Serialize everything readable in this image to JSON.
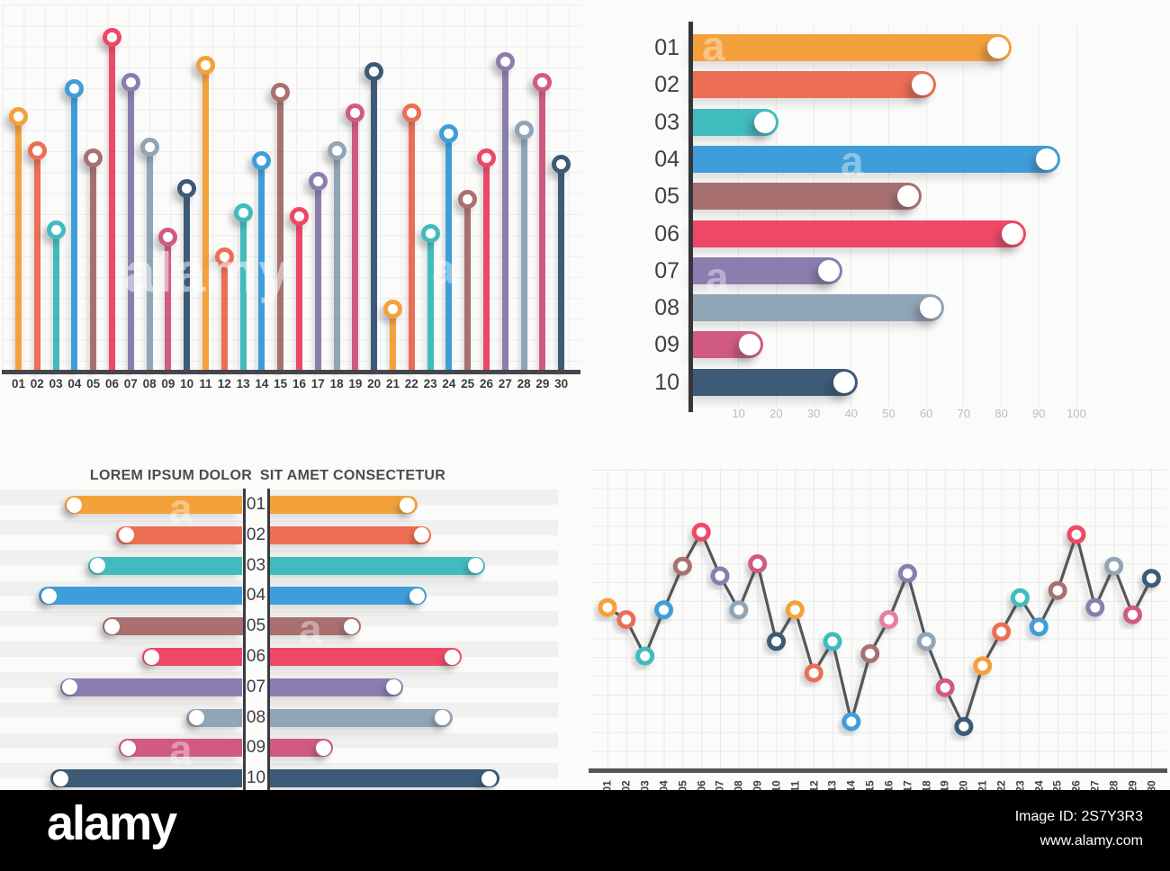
{
  "palette": [
    "#F4A13C",
    "#EC6E54",
    "#41BCBE",
    "#3F9EDA",
    "#A87170",
    "#EF4866",
    "#8C7DAF",
    "#90A5B5",
    "#D05A82",
    "#3D5A76"
  ],
  "watermarks": {
    "ghost_word": "alamy",
    "ghost_letter": "a"
  },
  "banner": {
    "background": "#000000",
    "logo": "alamy",
    "image_id": "Image ID: 2S7Y3R3",
    "url": "www.alamy.com"
  },
  "chart_data": [
    {
      "id": "lollipop",
      "type": "lollipop",
      "categories": [
        "01",
        "02",
        "03",
        "04",
        "05",
        "06",
        "07",
        "08",
        "09",
        "10",
        "11",
        "12",
        "13",
        "14",
        "15",
        "16",
        "17",
        "18",
        "19",
        "20",
        "21",
        "22",
        "23",
        "24",
        "25",
        "26",
        "27",
        "28",
        "29",
        "30"
      ],
      "values": [
        74,
        64,
        41,
        82,
        62,
        97,
        84,
        65,
        39,
        53,
        89,
        33,
        46,
        61,
        81,
        45,
        55,
        64,
        75,
        87,
        18,
        75,
        40,
        69,
        50,
        62,
        90,
        70,
        84,
        60
      ],
      "ylim": [
        0,
        100
      ],
      "grid": true,
      "legend": "none"
    },
    {
      "id": "hbar",
      "type": "bar",
      "orientation": "horizontal",
      "categories": [
        "01",
        "02",
        "03",
        "04",
        "05",
        "06",
        "07",
        "08",
        "09",
        "10"
      ],
      "values": [
        80,
        60,
        18,
        93,
        56,
        84,
        35,
        62,
        14,
        39
      ],
      "x_ticks": [
        10,
        20,
        30,
        40,
        50,
        60,
        70,
        80,
        90,
        100
      ],
      "xlim": [
        0,
        100
      ],
      "grid": "vertical",
      "legend": "none"
    },
    {
      "id": "butterfly",
      "type": "bar",
      "orientation": "butterfly",
      "left_title": "LOREM IPSUM DOLOR",
      "right_title": "SIT AMET CONSECTETUR",
      "categories": [
        "01",
        "02",
        "03",
        "04",
        "05",
        "06",
        "07",
        "08",
        "09",
        "10"
      ],
      "series": [
        {
          "name": "LOREM IPSUM DOLOR",
          "values": [
            76,
            54,
            66,
            87,
            60,
            43,
            78,
            24,
            53,
            82
          ]
        },
        {
          "name": "SIT AMET CONSECTETUR",
          "values": [
            63,
            69,
            92,
            67,
            39,
            82,
            57,
            78,
            27,
            98
          ]
        }
      ],
      "xlim": [
        0,
        100
      ],
      "legend": "none"
    },
    {
      "id": "line",
      "type": "line",
      "x": [
        "01",
        "02",
        "03",
        "04",
        "05",
        "06",
        "07",
        "08",
        "09",
        "10",
        "11",
        "12",
        "13",
        "14",
        "15",
        "16",
        "17",
        "18",
        "19",
        "20",
        "21",
        "22",
        "23",
        "24",
        "25",
        "26",
        "27",
        "28",
        "29",
        "30"
      ],
      "values": [
        67,
        62,
        47,
        66,
        84,
        98,
        80,
        66,
        85,
        53,
        66,
        40,
        53,
        20,
        48,
        62,
        81,
        53,
        34,
        18,
        43,
        57,
        71,
        59,
        74,
        97,
        67,
        84,
        64,
        79
      ],
      "point_color_overrides": {
        "15": "#E87F9F"
      },
      "line_color": "#55565b",
      "ylim": [
        0,
        100
      ],
      "grid": true,
      "legend": "none"
    }
  ]
}
